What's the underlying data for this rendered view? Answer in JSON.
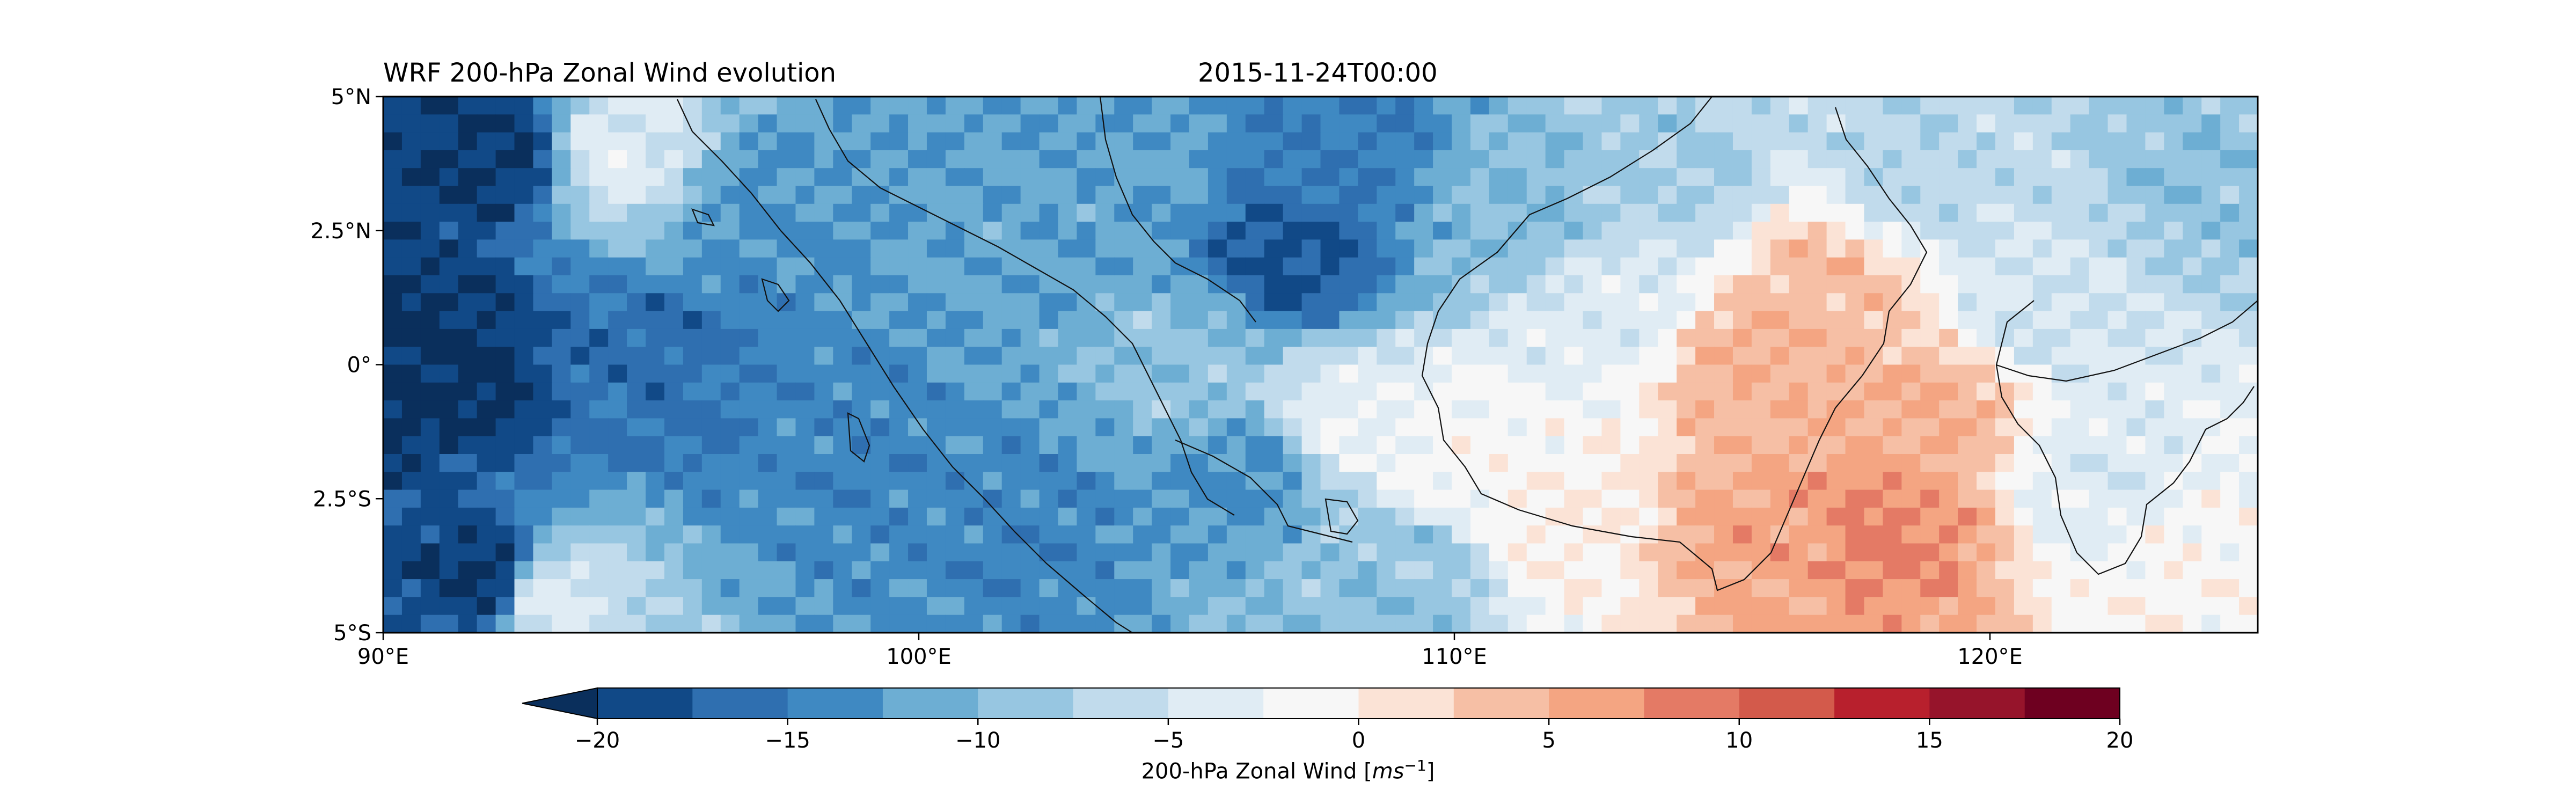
{
  "chart_data": {
    "type": "heatmap",
    "title": "WRF 200-hPa Zonal Wind evolution",
    "subtitle": "2015-11-24T00:00",
    "x_tick_labels": [
      "90°E",
      "100°E",
      "110°E",
      "120°E"
    ],
    "x_tick_values": [
      90,
      100,
      110,
      120
    ],
    "xlim": [
      90,
      125
    ],
    "y_tick_labels": [
      "5°N",
      "2.5°N",
      "0°",
      "2.5°S",
      "5°S"
    ],
    "y_tick_values": [
      5,
      2.5,
      0,
      -2.5,
      -5
    ],
    "ylim": [
      -5,
      5
    ],
    "colorbar": {
      "label_text": "200-hPa Zonal Wind [",
      "label_unit": "ms",
      "label_exp": "−1",
      "label_close": "]",
      "levels": [
        -20,
        -17.5,
        -15,
        -12.5,
        -10,
        -7.5,
        -5,
        -2.5,
        0,
        2.5,
        5,
        7.5,
        10,
        12.5,
        15,
        17.5,
        20
      ],
      "tick_values": [
        -20,
        -15,
        -10,
        -5,
        0,
        5,
        10,
        15,
        20
      ],
      "tick_labels": [
        "−20",
        "−15",
        "−10",
        "−5",
        "0",
        "5",
        "10",
        "15",
        "20"
      ],
      "colors": [
        "#114987",
        "#2f6fb0",
        "#3f89c2",
        "#6daed3",
        "#97c6e1",
        "#c1dbec",
        "#e0ecf4",
        "#f7f7f7",
        "#fbe3d6",
        "#f6bfa5",
        "#f4a582",
        "#e47a65",
        "#d35a4b",
        "#b8202d",
        "#96142b",
        "#6e0020"
      ],
      "under_color": "#0a2f5c",
      "extend": "min"
    },
    "field_approx": [
      {
        "lon": 91,
        "lat": 0,
        "value": -21
      },
      {
        "lon": 92,
        "lat": -4,
        "value": -21
      },
      {
        "lon": 92,
        "lat": 4,
        "value": -20
      },
      {
        "lon": 94.5,
        "lat": 4,
        "value": -4
      },
      {
        "lon": 93,
        "lat": -4.3,
        "value": -4
      },
      {
        "lon": 95,
        "lat": 0,
        "value": -16
      },
      {
        "lon": 97,
        "lat": 3,
        "value": -13
      },
      {
        "lon": 99,
        "lat": -1,
        "value": -14
      },
      {
        "lon": 101,
        "lat": 1,
        "value": -12
      },
      {
        "lon": 102,
        "lat": -3,
        "value": -14
      },
      {
        "lon": 104,
        "lat": 3.5,
        "value": -12
      },
      {
        "lon": 105,
        "lat": 0,
        "value": -9
      },
      {
        "lon": 106,
        "lat": -2,
        "value": -13
      },
      {
        "lon": 107,
        "lat": 2,
        "value": -18
      },
      {
        "lon": 108,
        "lat": 4,
        "value": -15
      },
      {
        "lon": 108,
        "lat": -1,
        "value": -3
      },
      {
        "lon": 109,
        "lat": -4,
        "value": -9
      },
      {
        "lon": 110,
        "lat": -1.5,
        "value": -1
      },
      {
        "lon": 111,
        "lat": 3,
        "value": -10
      },
      {
        "lon": 112,
        "lat": -3,
        "value": 0
      },
      {
        "lon": 113,
        "lat": 1,
        "value": -4
      },
      {
        "lon": 114,
        "lat": 3.5,
        "value": -8
      },
      {
        "lon": 115.5,
        "lat": 0,
        "value": 5
      },
      {
        "lon": 116,
        "lat": -3,
        "value": 6
      },
      {
        "lon": 117,
        "lat": 1.5,
        "value": 4
      },
      {
        "lon": 118,
        "lat": -3,
        "value": 8
      },
      {
        "lon": 119,
        "lat": -1,
        "value": 5
      },
      {
        "lon": 118.5,
        "lat": 3.5,
        "value": -7
      },
      {
        "lon": 121,
        "lat": 1,
        "value": -5
      },
      {
        "lon": 122,
        "lat": -2,
        "value": -4
      },
      {
        "lon": 124,
        "lat": 3.5,
        "value": -9
      },
      {
        "lon": 124,
        "lat": -4,
        "value": -1
      }
    ]
  }
}
